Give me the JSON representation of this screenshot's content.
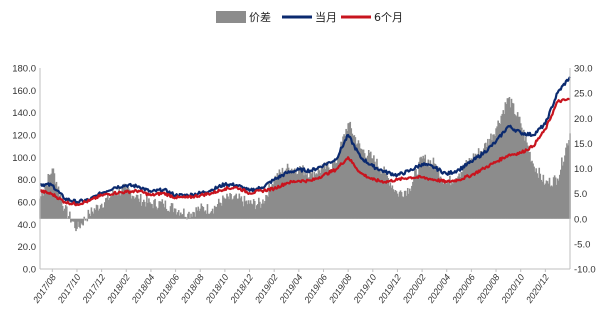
{
  "chart_data": {
    "type": "area+line",
    "legend": [
      {
        "name": "价差",
        "type": "area",
        "color": "#8c8c8c",
        "axis": "right"
      },
      {
        "name": "当月",
        "type": "line",
        "color": "#0b2a6f",
        "axis": "left"
      },
      {
        "name": "6个月",
        "type": "line",
        "color": "#c8141e",
        "axis": "left"
      }
    ],
    "legend_placement": "top-center",
    "grid": false,
    "left_axis": {
      "min": 0,
      "max": 180,
      "step": 20,
      "ticks": [
        "180.0",
        "160.0",
        "140.0",
        "120.0",
        "100.0",
        "80.0",
        "60.0",
        "40.0",
        "20.0",
        "0.0"
      ]
    },
    "right_axis": {
      "min": -10,
      "max": 30,
      "step": 5,
      "ticks": [
        "30.0",
        "25.0",
        "20.0",
        "15.0",
        "10.0",
        "5.0",
        "0.0",
        "-5.0",
        "-10.0"
      ]
    },
    "x_range": [
      "2017-07",
      "2021-02"
    ],
    "x_tick_labels": [
      "2017/08",
      "2017/10",
      "2017/12",
      "2018/02",
      "2018/04",
      "2018/06",
      "2018/08",
      "2018/10",
      "2018/12",
      "2019/02",
      "2019/04",
      "2019/06",
      "2019/08",
      "2019/10",
      "2019/12",
      "2020/02",
      "2020/04",
      "2020/06",
      "2020/08",
      "2020/10",
      "2020/12"
    ],
    "series": [
      {
        "name": "当月",
        "axis": "left",
        "points": [
          [
            "2017-07",
            76
          ],
          [
            "2017-08",
            75
          ],
          [
            "2017-09",
            63
          ],
          [
            "2017-10",
            60
          ],
          [
            "2017-11",
            62
          ],
          [
            "2017-12",
            68
          ],
          [
            "2018-01",
            73
          ],
          [
            "2018-02",
            75
          ],
          [
            "2018-03",
            74
          ],
          [
            "2018-04",
            69
          ],
          [
            "2018-05",
            71
          ],
          [
            "2018-06",
            66
          ],
          [
            "2018-07",
            66
          ],
          [
            "2018-08",
            68
          ],
          [
            "2018-09",
            71
          ],
          [
            "2018-10",
            76
          ],
          [
            "2018-11",
            75
          ],
          [
            "2018-12",
            70
          ],
          [
            "2019-01",
            73
          ],
          [
            "2019-02",
            80
          ],
          [
            "2019-03",
            86
          ],
          [
            "2019-04",
            89
          ],
          [
            "2019-05",
            88
          ],
          [
            "2019-06",
            93
          ],
          [
            "2019-07",
            98
          ],
          [
            "2019-08",
            120
          ],
          [
            "2019-09",
            100
          ],
          [
            "2019-10",
            92
          ],
          [
            "2019-11",
            87
          ],
          [
            "2019-12",
            84
          ],
          [
            "2020-01",
            88
          ],
          [
            "2020-02",
            94
          ],
          [
            "2020-03",
            91
          ],
          [
            "2020-04",
            85
          ],
          [
            "2020-05",
            89
          ],
          [
            "2020-06",
            96
          ],
          [
            "2020-07",
            104
          ],
          [
            "2020-08",
            114
          ],
          [
            "2020-09",
            128
          ],
          [
            "2020-10",
            122
          ],
          [
            "2020-11",
            120
          ],
          [
            "2020-12",
            130
          ],
          [
            "2021-01",
            158
          ],
          [
            "2021-02",
            172
          ]
        ]
      },
      {
        "name": "6个月",
        "axis": "left",
        "points": [
          [
            "2017-07",
            70
          ],
          [
            "2017-08",
            67
          ],
          [
            "2017-09",
            60
          ],
          [
            "2017-10",
            58
          ],
          [
            "2017-11",
            61
          ],
          [
            "2017-12",
            66
          ],
          [
            "2018-01",
            68
          ],
          [
            "2018-02",
            69
          ],
          [
            "2018-03",
            70
          ],
          [
            "2018-04",
            66
          ],
          [
            "2018-05",
            68
          ],
          [
            "2018-06",
            64
          ],
          [
            "2018-07",
            64
          ],
          [
            "2018-08",
            66
          ],
          [
            "2018-09",
            68
          ],
          [
            "2018-10",
            72
          ],
          [
            "2018-11",
            73
          ],
          [
            "2018-12",
            68
          ],
          [
            "2019-01",
            70
          ],
          [
            "2019-02",
            72
          ],
          [
            "2019-03",
            77
          ],
          [
            "2019-04",
            79
          ],
          [
            "2019-05",
            79
          ],
          [
            "2019-06",
            84
          ],
          [
            "2019-07",
            89
          ],
          [
            "2019-08",
            100
          ],
          [
            "2019-09",
            86
          ],
          [
            "2019-10",
            80
          ],
          [
            "2019-11",
            78
          ],
          [
            "2019-12",
            80
          ],
          [
            "2020-01",
            82
          ],
          [
            "2020-02",
            82
          ],
          [
            "2020-03",
            80
          ],
          [
            "2020-04",
            78
          ],
          [
            "2020-05",
            80
          ],
          [
            "2020-06",
            84
          ],
          [
            "2020-07",
            90
          ],
          [
            "2020-08",
            96
          ],
          [
            "2020-09",
            102
          ],
          [
            "2020-10",
            104
          ],
          [
            "2020-11",
            110
          ],
          [
            "2020-12",
            125
          ],
          [
            "2021-01",
            150
          ],
          [
            "2021-02",
            152
          ]
        ]
      },
      {
        "name": "价差",
        "axis": "right",
        "points": [
          [
            "2017-07",
            4
          ],
          [
            "2017-08",
            10
          ],
          [
            "2017-09",
            2
          ],
          [
            "2017-10",
            -2
          ],
          [
            "2017-11",
            1
          ],
          [
            "2017-12",
            3
          ],
          [
            "2018-01",
            5
          ],
          [
            "2018-02",
            6
          ],
          [
            "2018-03",
            4
          ],
          [
            "2018-04",
            3
          ],
          [
            "2018-05",
            3
          ],
          [
            "2018-06",
            2
          ],
          [
            "2018-07",
            1
          ],
          [
            "2018-08",
            2
          ],
          [
            "2018-09",
            2
          ],
          [
            "2018-10",
            4
          ],
          [
            "2018-11",
            4
          ],
          [
            "2018-12",
            3
          ],
          [
            "2019-01",
            3
          ],
          [
            "2019-02",
            8
          ],
          [
            "2019-03",
            10
          ],
          [
            "2019-04",
            10
          ],
          [
            "2019-05",
            9
          ],
          [
            "2019-06",
            10
          ],
          [
            "2019-07",
            11
          ],
          [
            "2019-08",
            19
          ],
          [
            "2019-09",
            14
          ],
          [
            "2019-10",
            12
          ],
          [
            "2019-11",
            9
          ],
          [
            "2019-12",
            5
          ],
          [
            "2020-01",
            6
          ],
          [
            "2020-02",
            12
          ],
          [
            "2020-03",
            11
          ],
          [
            "2020-04",
            7
          ],
          [
            "2020-05",
            9
          ],
          [
            "2020-06",
            12
          ],
          [
            "2020-07",
            14
          ],
          [
            "2020-08",
            18
          ],
          [
            "2020-09",
            24
          ],
          [
            "2020-10",
            19
          ],
          [
            "2020-11",
            11
          ],
          [
            "2020-12",
            7
          ],
          [
            "2021-01",
            8
          ],
          [
            "2021-02",
            17
          ]
        ]
      }
    ]
  },
  "colors": {
    "area": "#8c8c8c",
    "dangyue": "#0b2a6f",
    "six_month": "#c8141e",
    "axis": "#bfbfbf"
  }
}
